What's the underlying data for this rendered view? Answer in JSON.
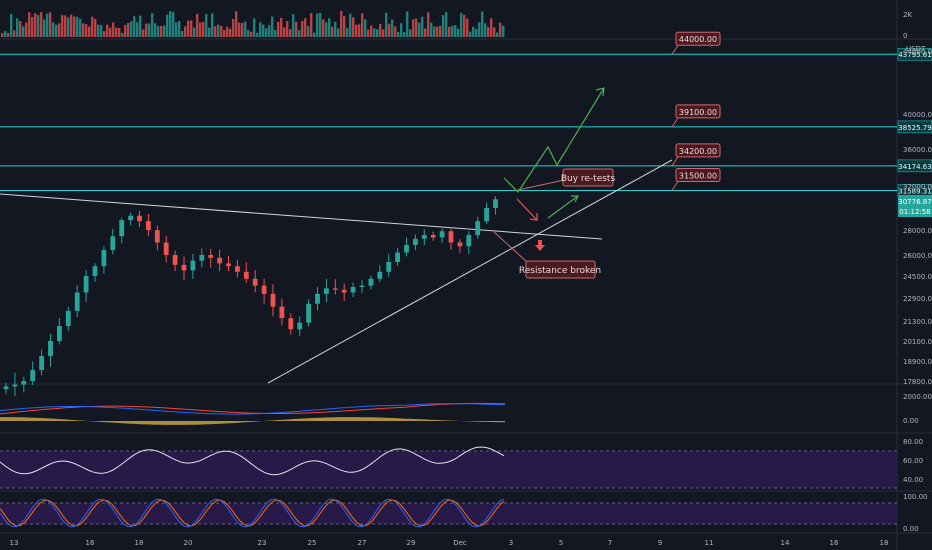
{
  "colors": {
    "background": "#131722",
    "bull": "#26a69a",
    "bear": "#ef5350",
    "level": "#1fd4d4",
    "trendline": "#d1d4dc",
    "projection": "#4caf50",
    "callout_bg": "#4a1a1e",
    "callout_border": "#c96a70",
    "macd_line": "#2962ff",
    "signal_line": "#f44336",
    "rsi_line": "#e0e3eb",
    "stoch_k": "#2962ff",
    "stoch_d": "#ff6d00",
    "band_fill": "#2a1b4d",
    "axis_text": "#b2b5be",
    "current_price_bg": "#26a69a"
  },
  "price_axis": {
    "quote": "USDT",
    "ticks": [
      "44000.00",
      "40000.00",
      "36000.00",
      "32000.00",
      "28000.00",
      "26000.00",
      "24500.00",
      "22900.00",
      "21300.00",
      "20100.00",
      "18900.00",
      "17800.00"
    ],
    "current_price": "30776.87",
    "countdown": "01:12:58"
  },
  "volume_axis": {
    "ticks": [
      "2K",
      "0"
    ]
  },
  "macd_axis": {
    "ticks": [
      "2000.00",
      "0.00"
    ]
  },
  "rsi_axis": {
    "ticks": [
      "80.00",
      "60.00",
      "40.00"
    ]
  },
  "stoch_axis": {
    "ticks": [
      "100.00",
      "0.00"
    ]
  },
  "time_axis": {
    "ticks": [
      "13",
      "16",
      "18",
      "20",
      "23",
      "25",
      "27",
      "29",
      "Dec",
      "3",
      "5",
      "7",
      "9",
      "11",
      "14",
      "16",
      "18"
    ]
  },
  "levels": [
    {
      "price": 43795.61,
      "label": "43795.61",
      "target": "44000.00"
    },
    {
      "price": 38525.79,
      "label": "38525.79",
      "target": "39100.00"
    },
    {
      "price": 34174.63,
      "label": "34174.63",
      "target": "34200.00"
    },
    {
      "price": 31589.31,
      "label": "31589.31",
      "target": "31500.00"
    }
  ],
  "annotations": {
    "buy_retest": "Buy re-tests",
    "resistance": "Resistance broken"
  },
  "chart_data": {
    "type": "candlestick",
    "symbol_quote": "USDT",
    "x_axis_ticks": [
      "13",
      "16",
      "18",
      "20",
      "23",
      "25",
      "27",
      "29",
      "Dec",
      "3",
      "5",
      "7",
      "9",
      "11",
      "14",
      "16",
      "18"
    ],
    "y_axis_ticks": [
      44000,
      40000,
      36000,
      32000,
      28000,
      26000,
      24500,
      22900,
      21300,
      20100,
      18900,
      17800
    ],
    "last_price": 30776.87,
    "horizontal_levels": [
      43795.61,
      38525.79,
      34174.63,
      31589.31
    ],
    "target_labels": [
      44000.0,
      39100.0,
      34200.0,
      31500.0
    ],
    "indicator_panels": [
      "volume",
      "MACD",
      "RSI",
      "Stochastic"
    ],
    "close_path": [
      17500,
      17600,
      17800,
      18400,
      19200,
      20100,
      21000,
      22000,
      23300,
      24500,
      25200,
      26400,
      27500,
      28900,
      29300,
      28800,
      28000,
      27000,
      26000,
      25300,
      24900,
      25600,
      26000,
      25800,
      25400,
      25200,
      24800,
      24300,
      23800,
      23200,
      22300,
      21500,
      20800,
      21200,
      22500,
      23200,
      23600,
      23500,
      23300,
      23700,
      23800,
      24300,
      24800,
      25500,
      26200,
      26800,
      27300,
      27600,
      27400,
      27900,
      27000,
      26700,
      27600,
      28800,
      30000,
      30800
    ]
  }
}
